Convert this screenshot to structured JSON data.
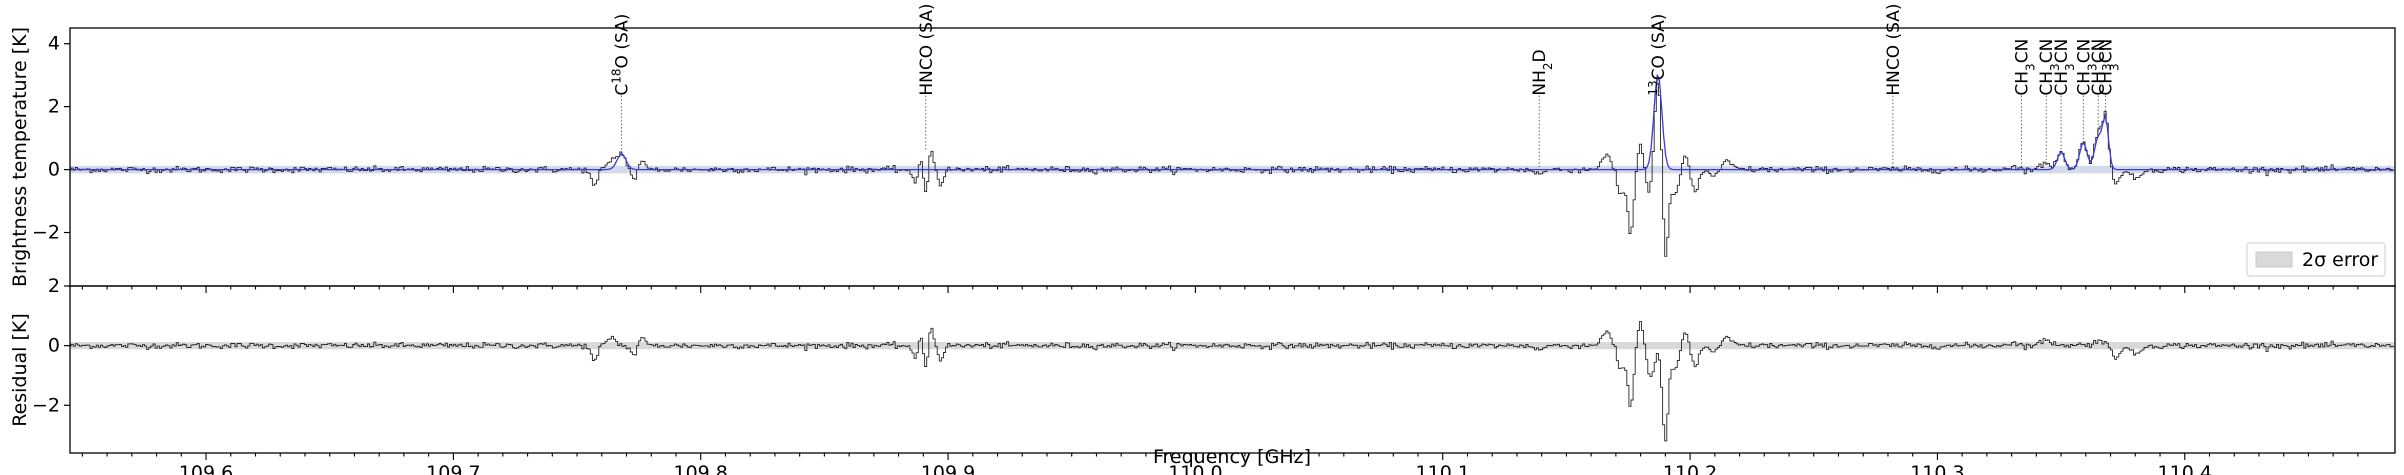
{
  "chart_data": [
    {
      "type": "line",
      "panel": "spectrum",
      "xlabel": "",
      "ylabel": "Brightness temperature [K]",
      "xlim": [
        109.545,
        110.485
      ],
      "ylim": [
        -3.7,
        4.5
      ],
      "yticks": [
        -2,
        0,
        2,
        4
      ],
      "ytick_labels": [
        "−2",
        "0",
        "2",
        "4"
      ],
      "grid": false,
      "noise_rms": 0.06,
      "error_band_2sigma": 0.12,
      "series": [
        {
          "kind": "data-step",
          "color": "#000000"
        },
        {
          "kind": "model",
          "color": "#3b3bd8"
        }
      ],
      "features": [
        {
          "center": 109.757,
          "amp": -0.55,
          "width": 0.0012
        },
        {
          "center": 109.764,
          "amp": 0.3,
          "width": 0.0015
        },
        {
          "center": 109.768,
          "amp": 0.5,
          "width": 0.0018
        },
        {
          "center": 109.773,
          "amp": -0.35,
          "width": 0.0012
        },
        {
          "center": 109.776,
          "amp": 0.3,
          "width": 0.0012
        },
        {
          "center": 109.887,
          "amp": -0.6,
          "width": 0.0012
        },
        {
          "center": 109.889,
          "amp": 0.6,
          "width": 0.0012
        },
        {
          "center": 109.891,
          "amp": -1.0,
          "width": 0.001
        },
        {
          "center": 109.893,
          "amp": 0.65,
          "width": 0.0012
        },
        {
          "center": 109.897,
          "amp": -0.45,
          "width": 0.0012
        },
        {
          "center": 110.139,
          "amp": -0.15,
          "width": 0.0015
        },
        {
          "center": 110.166,
          "amp": 0.45,
          "width": 0.002
        },
        {
          "center": 110.172,
          "amp": -0.8,
          "width": 0.0015
        },
        {
          "center": 110.176,
          "amp": -2.0,
          "width": 0.0012
        },
        {
          "center": 110.18,
          "amp": 0.8,
          "width": 0.0012
        },
        {
          "center": 110.184,
          "amp": -0.9,
          "width": 0.0015
        },
        {
          "center": 110.187,
          "amp": 3.0,
          "width": 0.0015
        },
        {
          "center": 110.19,
          "amp": -3.0,
          "width": 0.0012
        },
        {
          "center": 110.194,
          "amp": -0.8,
          "width": 0.0015
        },
        {
          "center": 110.198,
          "amp": 0.4,
          "width": 0.0015
        },
        {
          "center": 110.202,
          "amp": -0.7,
          "width": 0.0015
        },
        {
          "center": 110.21,
          "amp": -0.2,
          "width": 0.002
        },
        {
          "center": 110.215,
          "amp": 0.25,
          "width": 0.002
        },
        {
          "center": 110.33,
          "amp": 0.1,
          "width": 0.002
        },
        {
          "center": 110.344,
          "amp": 0.2,
          "width": 0.002
        },
        {
          "center": 110.35,
          "amp": 0.6,
          "width": 0.0015
        },
        {
          "center": 110.359,
          "amp": 0.9,
          "width": 0.0015
        },
        {
          "center": 110.365,
          "amp": 1.2,
          "width": 0.0015
        },
        {
          "center": 110.368,
          "amp": 1.6,
          "width": 0.0012
        },
        {
          "center": 110.372,
          "amp": -0.4,
          "width": 0.0015
        },
        {
          "center": 110.38,
          "amp": -0.3,
          "width": 0.002
        }
      ],
      "model_features": [
        {
          "center": 109.768,
          "amp": 0.5,
          "width": 0.0018
        },
        {
          "center": 110.187,
          "amp": 3.05,
          "width": 0.0016
        },
        {
          "center": 110.35,
          "amp": 0.55,
          "width": 0.0015
        },
        {
          "center": 110.359,
          "amp": 0.85,
          "width": 0.0015
        },
        {
          "center": 110.365,
          "amp": 1.0,
          "width": 0.0015
        },
        {
          "center": 110.368,
          "amp": 1.55,
          "width": 0.0012
        }
      ],
      "line_ids": [
        {
          "x": 109.768,
          "label": "C18O (SA)",
          "main": "C",
          "sup": "18",
          "rest": "O (SA)",
          "y_bottom": 0.5
        },
        {
          "x": 109.891,
          "label": "HNCO (SA)",
          "main": "HNCO (SA)",
          "y_bottom": 0.6
        },
        {
          "x": 110.139,
          "label": "NH2D",
          "main": "NH",
          "sub": "2",
          "rest": "D",
          "y_bottom": 0.05
        },
        {
          "x": 110.187,
          "label": "13CO (SA)",
          "main": "",
          "sup": "13",
          "rest": "CO (SA)",
          "y_bottom": 3.0
        },
        {
          "x": 110.282,
          "label": "HNCO (SA)",
          "main": "HNCO (SA)",
          "y_bottom": 0.05
        },
        {
          "x": 110.334,
          "label": "CH3CN",
          "main": "CH",
          "sub": "3",
          "rest": "CN",
          "y_bottom": 0.05
        },
        {
          "x": 110.344,
          "label": "CH3CN",
          "main": "CH",
          "sub": "3",
          "rest": "CN",
          "y_bottom": 0.2
        },
        {
          "x": 110.35,
          "label": "CH3CN",
          "main": "CH",
          "sub": "3",
          "rest": "CN",
          "y_bottom": 0.6
        },
        {
          "x": 110.359,
          "label": "CH3CN",
          "main": "CH",
          "sub": "3",
          "rest": "CN",
          "y_bottom": 0.9
        },
        {
          "x": 110.365,
          "label": "CH3CN",
          "main": "CH",
          "sub": "3",
          "rest": "CN",
          "y_bottom": 1.2
        },
        {
          "x": 110.368,
          "label": "CH3CN",
          "main": "CH",
          "sub": "3",
          "rest": "CN",
          "y_bottom": 1.6
        }
      ],
      "legend": {
        "placement": "bottom-right",
        "label": "2σ error",
        "color": "#d9d9d9"
      }
    },
    {
      "type": "line",
      "panel": "residual",
      "xlabel": "Frequency [GHz]",
      "ylabel": "Residual [K]",
      "xlim": [
        109.545,
        110.485
      ],
      "ylim": [
        -3.6,
        2.0
      ],
      "yticks": [
        -2,
        0,
        2
      ],
      "ytick_labels": [
        "−2",
        "0",
        "2"
      ],
      "xticks": [
        109.6,
        109.7,
        109.8,
        109.9,
        110.0,
        110.1,
        110.2,
        110.3,
        110.4
      ],
      "xtick_labels": [
        "109.6",
        "109.7",
        "109.8",
        "109.9",
        "110.0",
        "110.1",
        "110.2",
        "110.3",
        "110.4"
      ],
      "grid": false,
      "error_band_2sigma": 0.12
    }
  ]
}
